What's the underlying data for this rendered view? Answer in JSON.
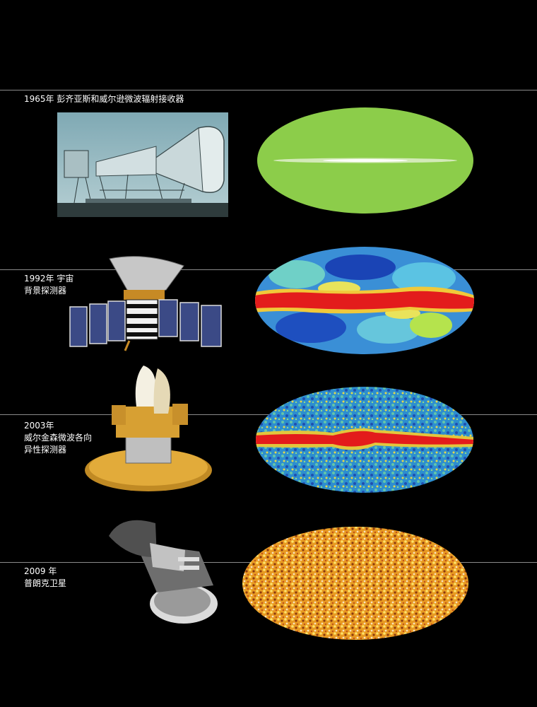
{
  "sections": [
    {
      "lines": [
        "1965年 彭齐亚斯和威尔逊微波辐射接收器"
      ],
      "instrument_icon": "horn-antenna-photo",
      "map_icon": "green-sky-map"
    },
    {
      "lines": [
        "1992年 宇宙",
        "背景探测器"
      ],
      "instrument_icon": "cobe-satellite",
      "map_icon": "cobe-sky-map"
    },
    {
      "lines": [
        "2003年",
        "威尔金森微波各向",
        "异性探测器"
      ],
      "instrument_icon": "wmap-satellite",
      "map_icon": "wmap-sky-map"
    },
    {
      "lines": [
        "2009 年",
        "普朗克卫星"
      ],
      "instrument_icon": "planck-satellite",
      "map_icon": "planck-sky-map"
    }
  ],
  "colors": {
    "background": "#000000",
    "rule": "#8a8a8a",
    "label": "#ffffff"
  }
}
